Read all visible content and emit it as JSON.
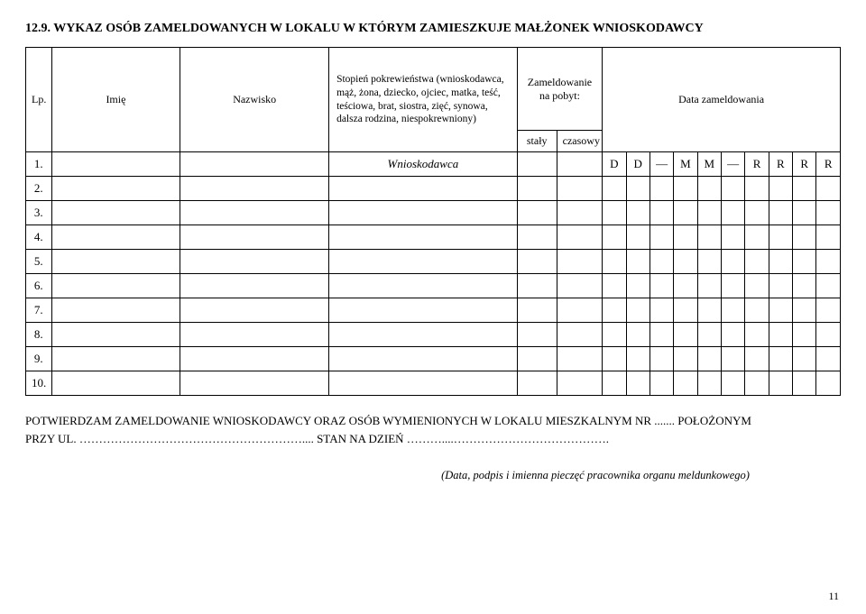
{
  "heading": "12.9. WYKAZ OSÓB ZAMELDOWANYCH W LOKALU W KTÓRYM ZAMIESZKUJE MAŁŻONEK WNIOSKODAWCY",
  "headers": {
    "lp": "Lp.",
    "imie": "Imię",
    "nazwisko": "Nazwisko",
    "stopien": "Stopień pokrewieństwa (wnioskodawca, mąż, żona, dziecko, ojciec, matka, teść, teściowa, brat, siostra, zięć, synowa, dalsza rodzina, niespokrewniony)",
    "zameld": "Zameldowanie na pobyt:",
    "staly": "stały",
    "czasowy": "czasowy",
    "data": "Data zameldowania"
  },
  "rows": [
    {
      "n": "1.",
      "stop": "Wnioskodawca",
      "date": [
        "D",
        "D",
        "—",
        "M",
        "M",
        "—",
        "R",
        "R",
        "R",
        "R"
      ]
    },
    {
      "n": "2."
    },
    {
      "n": "3."
    },
    {
      "n": "4."
    },
    {
      "n": "5."
    },
    {
      "n": "6."
    },
    {
      "n": "7."
    },
    {
      "n": "8."
    },
    {
      "n": "9."
    },
    {
      "n": "10."
    }
  ],
  "confirm1": "POTWIERDZAM ZAMELDOWANIE WNIOSKODAWCY ORAZ OSÓB WYMIENIONYCH W LOKALU MIESZKALNYM NR ....... POŁOŻONYM",
  "confirm2": "PRZY UL. ………………………………………………….... STAN NA DZIEŃ ………....………………………………….",
  "signature": "(Data, podpis i imienna pieczęć pracownika organu meldunkowego)",
  "page": "11"
}
